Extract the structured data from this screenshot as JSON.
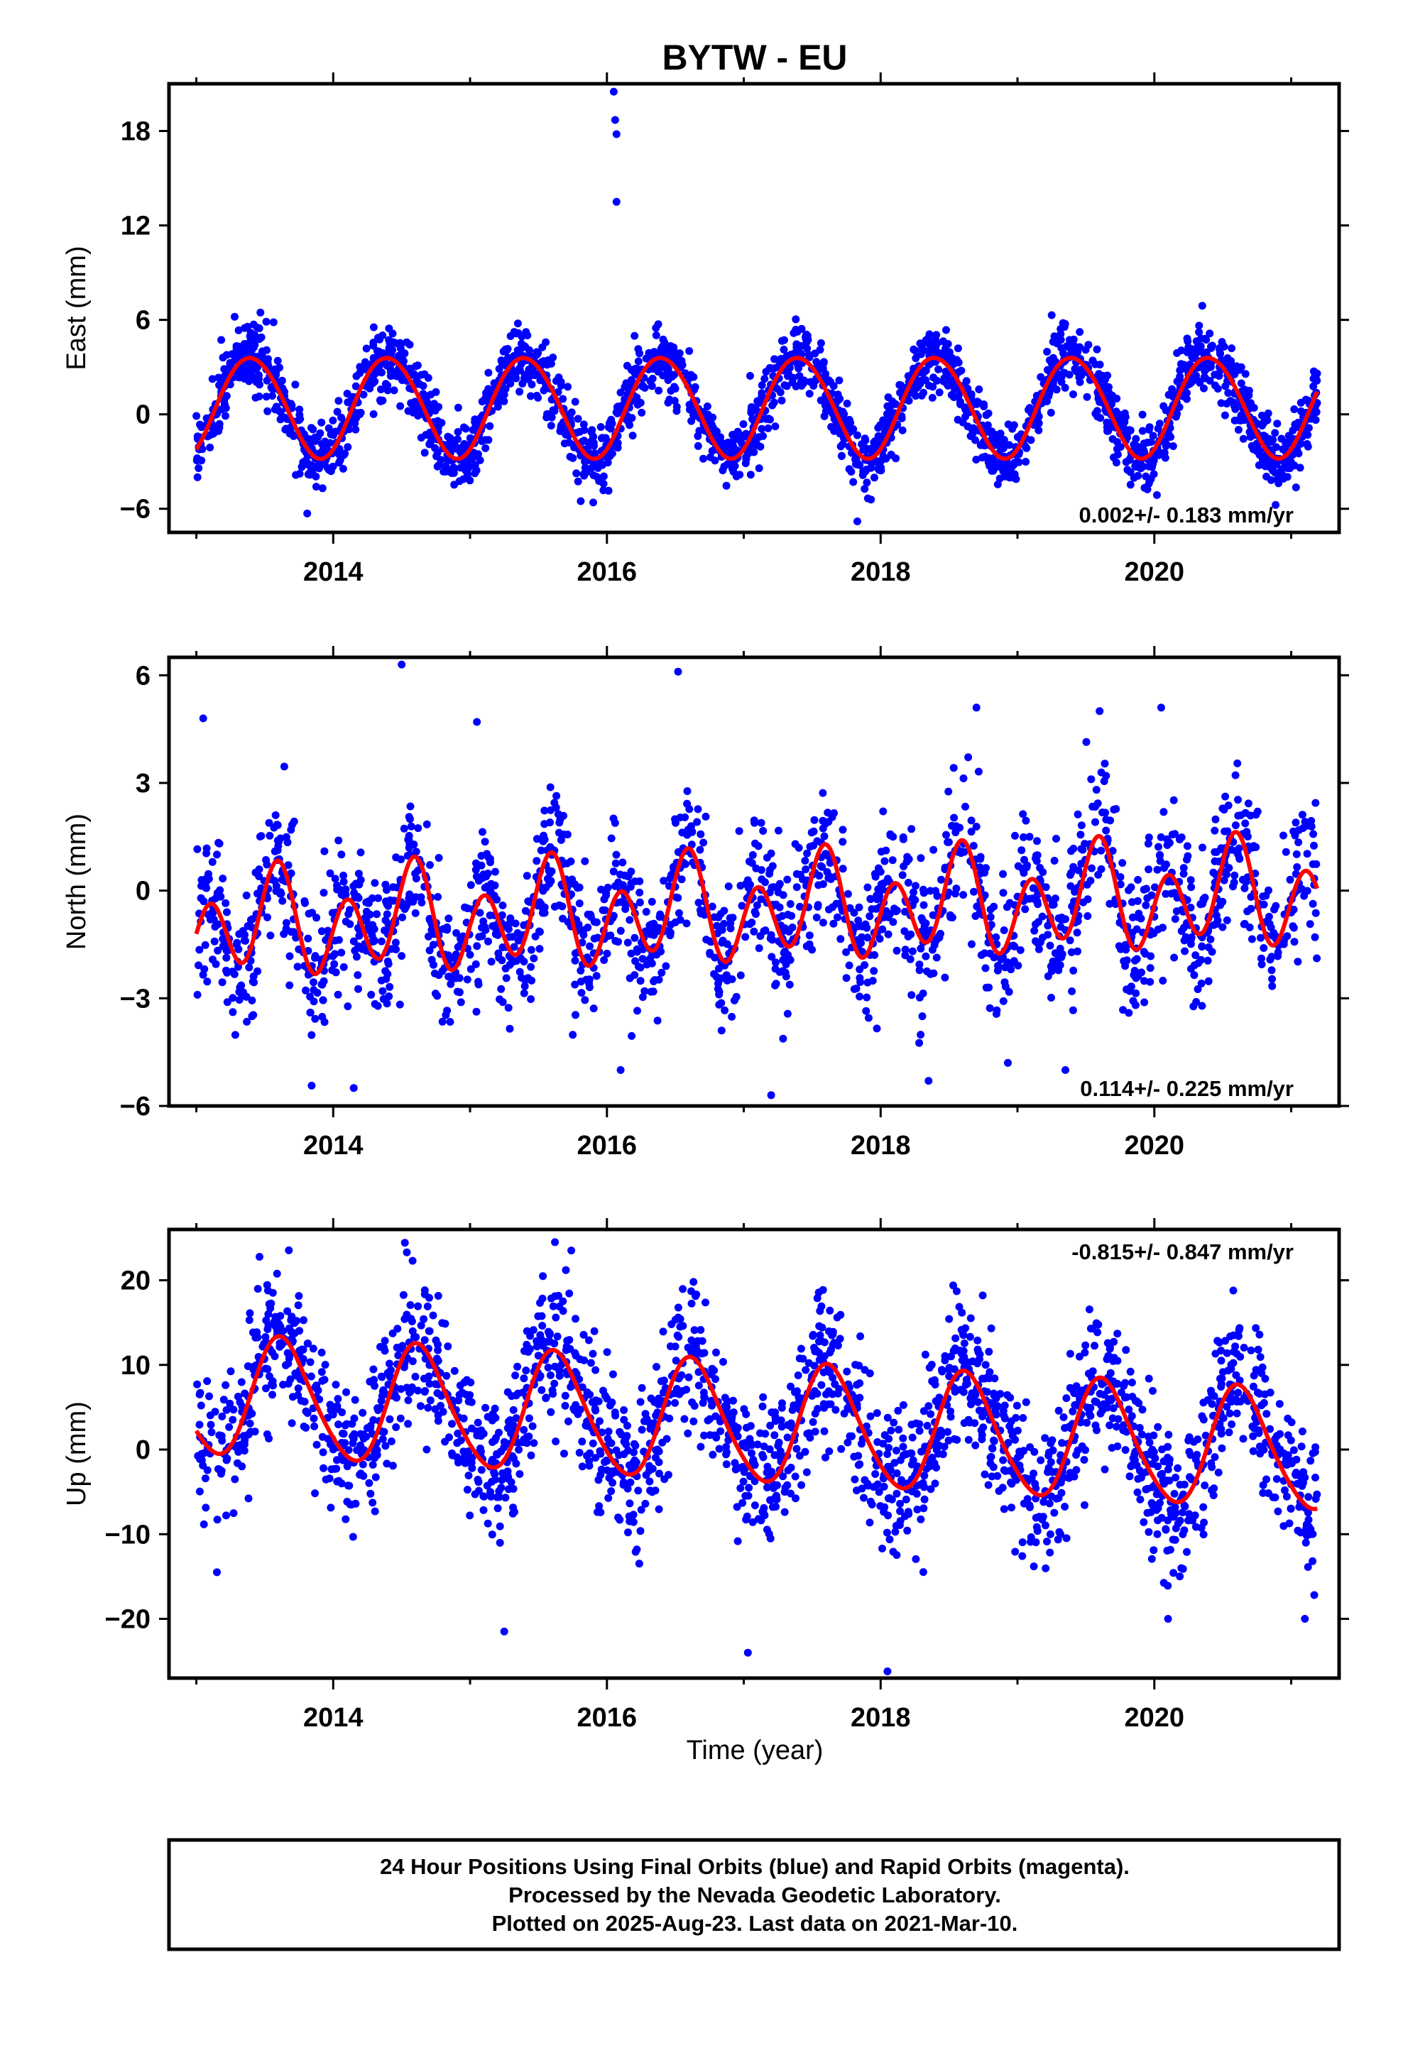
{
  "title": "BYTW - EU",
  "xlabel": "Time (year)",
  "chart_data": [
    {
      "type": "scatter",
      "panel": "east",
      "ylabel": "East (mm)",
      "xlim": [
        2012.8,
        2021.35
      ],
      "ylim": [
        -7.5,
        21
      ],
      "yticks": [
        -6,
        0,
        6,
        12,
        18
      ],
      "xticks": [
        2014,
        2016,
        2018,
        2020
      ],
      "rate_text": "0.002+/- 0.183 mm/yr",
      "rate_position": "bottom-right",
      "fit": {
        "color": "#ff0000",
        "offset": 0.5,
        "annual_amplitude": 3.2,
        "annual_peak": 0.4,
        "semiannual_amplitude": 0.15,
        "semiannual_peak": 0.2,
        "trend": 0.002
      },
      "scatter": {
        "color": "#0000ff",
        "start": 2013.0,
        "end": 2021.19,
        "noise_sd": 1.05,
        "count": 2400,
        "seed": 11
      },
      "outliers": [
        [
          2016.05,
          20.5
        ],
        [
          2016.06,
          18.7
        ],
        [
          2016.07,
          17.8
        ],
        [
          2016.07,
          13.5
        ],
        [
          2013.81,
          -6.3
        ],
        [
          2017.83,
          -6.8
        ],
        [
          2015.9,
          -5.6
        ],
        [
          2019.25,
          6.3
        ],
        [
          2020.35,
          6.9
        ],
        [
          2013.28,
          6.2
        ]
      ]
    },
    {
      "type": "scatter",
      "panel": "north",
      "ylabel": "North (mm)",
      "xlim": [
        2012.8,
        2021.35
      ],
      "ylim": [
        -6,
        6.5
      ],
      "yticks": [
        -6,
        -3,
        0,
        3,
        6
      ],
      "xticks": [
        2014,
        2016,
        2018,
        2020
      ],
      "rate_text": "0.114+/- 0.225 mm/yr",
      "rate_position": "bottom-right",
      "fit": {
        "color": "#ff0000",
        "offset": -0.55,
        "annual_amplitude": 0.6,
        "annual_peak": 0.55,
        "semiannual_amplitude": 1.2,
        "semiannual_peak": 0.1,
        "trend": 0.114
      },
      "scatter": {
        "color": "#0000ff",
        "start": 2013.0,
        "end": 2021.19,
        "noise_sd": 1.0,
        "count": 1900,
        "seed": 23
      },
      "outliers": [
        [
          2014.5,
          6.3
        ],
        [
          2016.52,
          6.1
        ],
        [
          2018.7,
          5.1
        ],
        [
          2019.6,
          5.0
        ],
        [
          2020.05,
          5.1
        ],
        [
          2015.05,
          4.7
        ],
        [
          2013.05,
          4.8
        ],
        [
          2014.15,
          -5.5
        ],
        [
          2017.2,
          -5.7
        ],
        [
          2019.35,
          -5.0
        ],
        [
          2016.1,
          -5.0
        ],
        [
          2018.35,
          -5.3
        ],
        [
          2018.93,
          -4.8
        ]
      ]
    },
    {
      "type": "scatter",
      "panel": "up",
      "ylabel": "Up (mm)",
      "xlim": [
        2012.8,
        2021.35
      ],
      "ylim": [
        -27,
        26
      ],
      "yticks": [
        -20,
        -10,
        0,
        10,
        20
      ],
      "xticks": [
        2014,
        2016,
        2018,
        2020
      ],
      "rate_text": "-0.815+/- 0.847 mm/yr",
      "rate_position": "top-right",
      "fit": {
        "color": "#ff0000",
        "offset": 3.1,
        "annual_amplitude": 7.0,
        "annual_peak": 0.63,
        "semiannual_amplitude": 0.8,
        "semiannual_peak": 0.55,
        "trend": -0.815
      },
      "scatter": {
        "color": "#0000ff",
        "start": 2013.0,
        "end": 2021.19,
        "noise_sd": 4.3,
        "count": 2100,
        "seed": 37
      },
      "outliers": [
        [
          2015.62,
          24.5
        ],
        [
          2014.58,
          22.3
        ],
        [
          2015.7,
          21.2
        ],
        [
          2017.03,
          -24.0
        ],
        [
          2018.05,
          -26.2
        ],
        [
          2013.15,
          -14.5
        ],
        [
          2015.25,
          -21.5
        ],
        [
          2020.1,
          -20.0
        ],
        [
          2021.1,
          -20.0
        ]
      ]
    }
  ],
  "footer": {
    "line1": "24 Hour Positions Using Final Orbits (blue) and Rapid Orbits (magenta).",
    "line2": "Processed by the Nevada Geodetic Laboratory.",
    "line3": "Plotted on 2025-Aug-23. Last data on 2021-Mar-10."
  }
}
